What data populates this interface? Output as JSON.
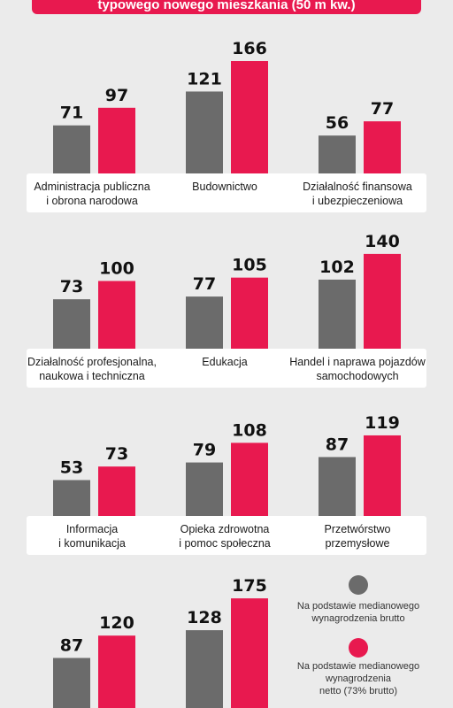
{
  "header": {
    "title": "typowego nowego mieszkania (50 m kw.)"
  },
  "colors": {
    "brutto": "#6b6b6b",
    "netto": "#e8194f"
  },
  "chart_data": {
    "type": "bar",
    "series": [
      {
        "name": "Na podstawie medianowego wynagrodzenia brutto",
        "color": "#6b6b6b"
      },
      {
        "name": "Na podstawie medianowego wynagrodzenia netto (73% brutto)",
        "color": "#e8194f"
      }
    ],
    "groups": [
      {
        "label": "Administracja publiczna\ni obrona narodowa",
        "brutto": 71,
        "netto": 97
      },
      {
        "label": "Budownictwo",
        "brutto": 121,
        "netto": 166
      },
      {
        "label": "Działalność finansowa\ni ubezpieczeniowa",
        "brutto": 56,
        "netto": 77
      },
      {
        "label": "Działalność profesjonalna,\nnaukowa i techniczna",
        "brutto": 73,
        "netto": 100
      },
      {
        "label": "Edukacja",
        "brutto": 77,
        "netto": 105
      },
      {
        "label": "Handel i naprawa pojazdów\nsamochodowych",
        "brutto": 102,
        "netto": 140
      },
      {
        "label": "Informacja\ni komunikacja",
        "brutto": 53,
        "netto": 73
      },
      {
        "label": "Opieka zdrowotna\ni pomoc społeczna",
        "brutto": 79,
        "netto": 108
      },
      {
        "label": "Przetwórstwo\nprzemysłowe",
        "brutto": 87,
        "netto": 119
      },
      {
        "label": "",
        "brutto": 87,
        "netto": 120
      },
      {
        "label": "",
        "brutto": 128,
        "netto": 175
      }
    ]
  },
  "legend": {
    "brutto_label": "Na podstawie medianowego\nwynagrodzenia brutto",
    "netto_label": "Na podstawie medianowego\nwynagrodzenia\nnetto (73% brutto)"
  }
}
